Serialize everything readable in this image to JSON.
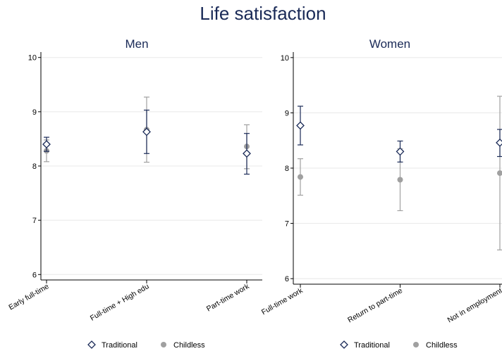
{
  "title": "Life satisfaction",
  "colors": {
    "title": "#1a2a57",
    "traditional": "#1a2a57",
    "childless": "#a0a0a0"
  },
  "legend": [
    {
      "label": "Traditional",
      "marker": "hollow-diamond"
    },
    {
      "label": "Childless",
      "marker": "filled-circle"
    }
  ],
  "chart_data": [
    {
      "type": "scatter",
      "title": "Men",
      "categories": [
        "Early full-time",
        "Full-time + High edu",
        "Part-time work"
      ],
      "ylim": [
        5.9,
        10.1
      ],
      "yticks": [
        6,
        7,
        8,
        9,
        10
      ],
      "grid": true,
      "series": [
        {
          "name": "Traditional",
          "values": [
            8.4,
            8.63,
            8.23
          ],
          "ci_low": [
            8.27,
            8.23,
            7.85
          ],
          "ci_high": [
            8.53,
            9.03,
            8.6
          ]
        },
        {
          "name": "Childless",
          "values": [
            8.28,
            8.67,
            8.36
          ],
          "ci_low": [
            8.08,
            8.07,
            7.95
          ],
          "ci_high": [
            8.48,
            9.27,
            8.76
          ]
        }
      ]
    },
    {
      "type": "scatter",
      "title": "Women",
      "categories": [
        "Full-time work",
        "Return to part-time",
        "Not in employment"
      ],
      "ylim": [
        5.9,
        10.1
      ],
      "yticks": [
        6,
        7,
        8,
        9,
        10
      ],
      "grid": true,
      "series": [
        {
          "name": "Traditional",
          "values": [
            8.77,
            8.3,
            8.46
          ],
          "ci_low": [
            8.42,
            8.11,
            8.21
          ],
          "ci_high": [
            9.12,
            8.49,
            8.7
          ]
        },
        {
          "name": "Childless",
          "values": [
            7.84,
            7.79,
            7.91
          ],
          "ci_low": [
            7.51,
            7.23,
            6.52
          ],
          "ci_high": [
            8.17,
            8.35,
            9.3
          ]
        }
      ]
    }
  ]
}
